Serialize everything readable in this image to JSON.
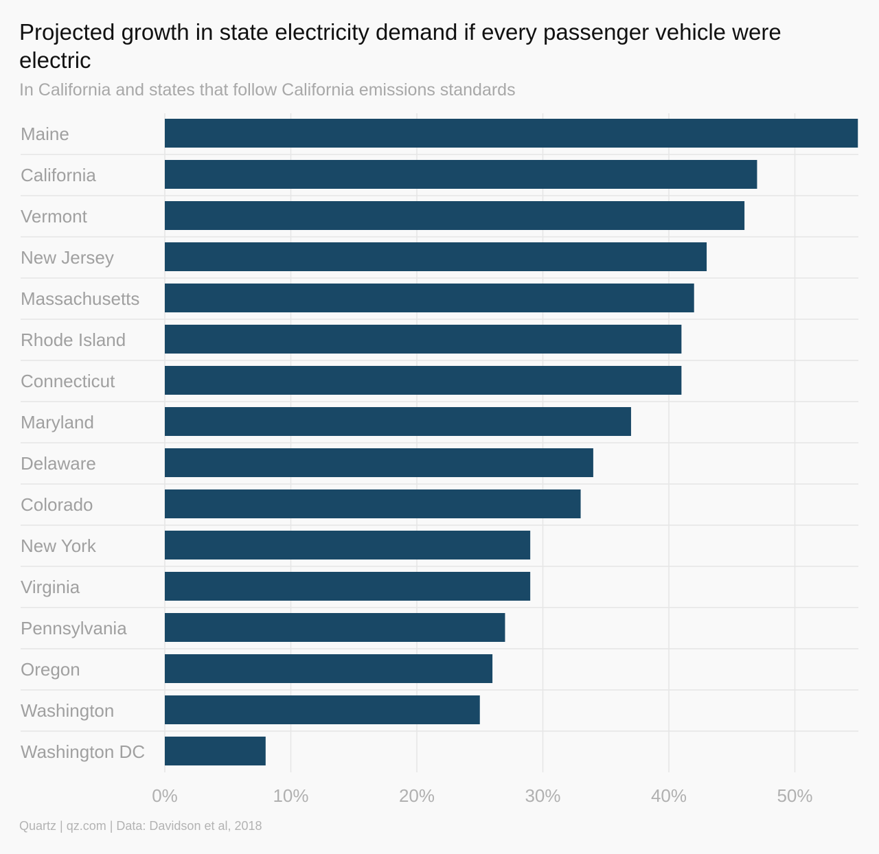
{
  "header": {
    "title": "Projected growth in state electricity demand if every passenger vehicle were electric",
    "subtitle": "In California and states that follow California emissions standards"
  },
  "footer": {
    "source": "Quartz | qz.com | Data: Davidson et al, 2018"
  },
  "colors": {
    "bar": "#194866",
    "category_label": "#a0a0a0",
    "tick_label": "#b0b0b0",
    "grid": "#e6e6e6"
  },
  "chart_data": {
    "type": "bar",
    "orientation": "horizontal",
    "categories": [
      "Maine",
      "California",
      "Vermont",
      "New Jersey",
      "Massachusetts",
      "Rhode Island",
      "Connecticut",
      "Maryland",
      "Delaware",
      "Colorado",
      "New York",
      "Virginia",
      "Pennsylvania",
      "Oregon",
      "Washington",
      "Washington DC"
    ],
    "values": [
      55,
      47,
      46,
      43,
      42,
      41,
      41,
      37,
      34,
      33,
      29,
      29,
      27,
      26,
      25,
      8
    ],
    "unit": "%",
    "xlim": [
      0,
      55
    ],
    "xticks": [
      0,
      10,
      20,
      30,
      40,
      50
    ],
    "xtick_labels": [
      "0%",
      "10%",
      "20%",
      "30%",
      "40%",
      "50%"
    ],
    "grid": true
  }
}
